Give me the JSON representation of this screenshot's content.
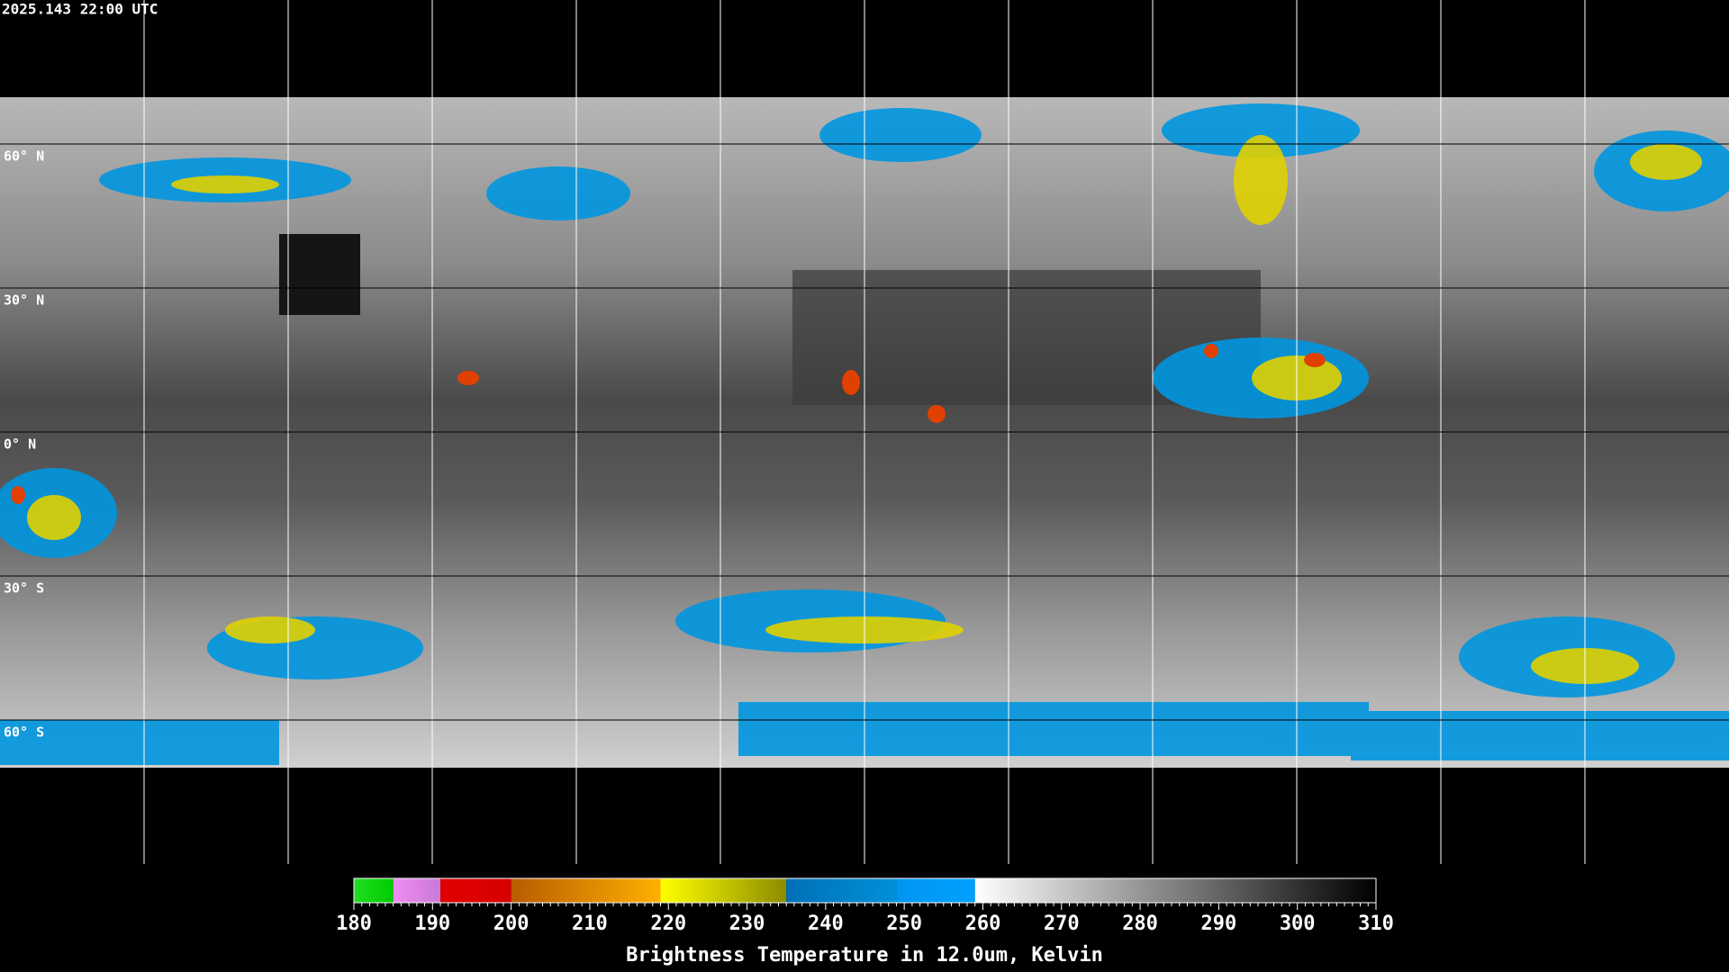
{
  "header": {
    "timestamp": "2025.143 22:00 UTC"
  },
  "map": {
    "latitudes": [
      {
        "value": 60,
        "label": "60° N"
      },
      {
        "value": 30,
        "label": "30° N"
      },
      {
        "value": 0,
        "label": "0° N"
      },
      {
        "value": -30,
        "label": "30° S"
      },
      {
        "value": -60,
        "label": "60° S"
      }
    ]
  },
  "colorbar": {
    "title": "Brightness Temperature in 12.0um, Kelvin",
    "lim": [
      180,
      310
    ],
    "ticks": [
      180,
      190,
      200,
      210,
      220,
      230,
      240,
      250,
      260,
      270,
      280,
      290,
      300,
      310
    ],
    "segments": [
      {
        "from": 180,
        "to": 185,
        "color": "#22dd22",
        "color_end": "#00cc00"
      },
      {
        "from": 185,
        "to": 191,
        "color": "#f08cf0",
        "color_end": "#c87ad8"
      },
      {
        "from": 191,
        "to": 200,
        "color": "#e00000",
        "color_end": "#d80000"
      },
      {
        "from": 200,
        "to": 219,
        "color": "#b85c00",
        "color_end": "#ffb000"
      },
      {
        "from": 219,
        "to": 235,
        "color": "#ffff00",
        "color_end": "#8c8c00"
      },
      {
        "from": 235,
        "to": 249,
        "color": "#0070b8",
        "color_end": "#0090d8"
      },
      {
        "from": 249,
        "to": 259,
        "color": "#0096f0",
        "color_end": "#00a0ff"
      },
      {
        "from": 259,
        "to": 310,
        "color": "#ffffff",
        "color_end": "#000000"
      }
    ]
  }
}
